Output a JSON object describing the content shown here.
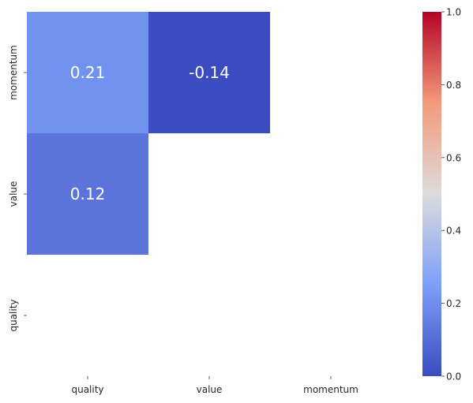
{
  "chart_data": {
    "type": "heatmap",
    "title": "",
    "xlabel": "",
    "ylabel": "",
    "x_categories": [
      "quality",
      "value",
      "momentum"
    ],
    "y_categories": [
      "momentum",
      "value",
      "quality"
    ],
    "cells": [
      {
        "row": "momentum",
        "col": "quality",
        "value": 0.21,
        "label": "0.21"
      },
      {
        "row": "momentum",
        "col": "value",
        "value": -0.14,
        "label": "-0.14"
      },
      {
        "row": "value",
        "col": "quality",
        "value": 0.12,
        "label": "0.12"
      }
    ],
    "colormap": "coolwarm",
    "vmin": 0,
    "vmax": 1,
    "colorbar": {
      "ticks": [
        0.0,
        0.2,
        0.4,
        0.6,
        0.8,
        1.0
      ],
      "tick_labels": [
        "0.0",
        "0.2",
        "0.4",
        "0.6",
        "0.8",
        "1.0"
      ]
    },
    "annotation_color": "#ffffff",
    "grid": false
  }
}
